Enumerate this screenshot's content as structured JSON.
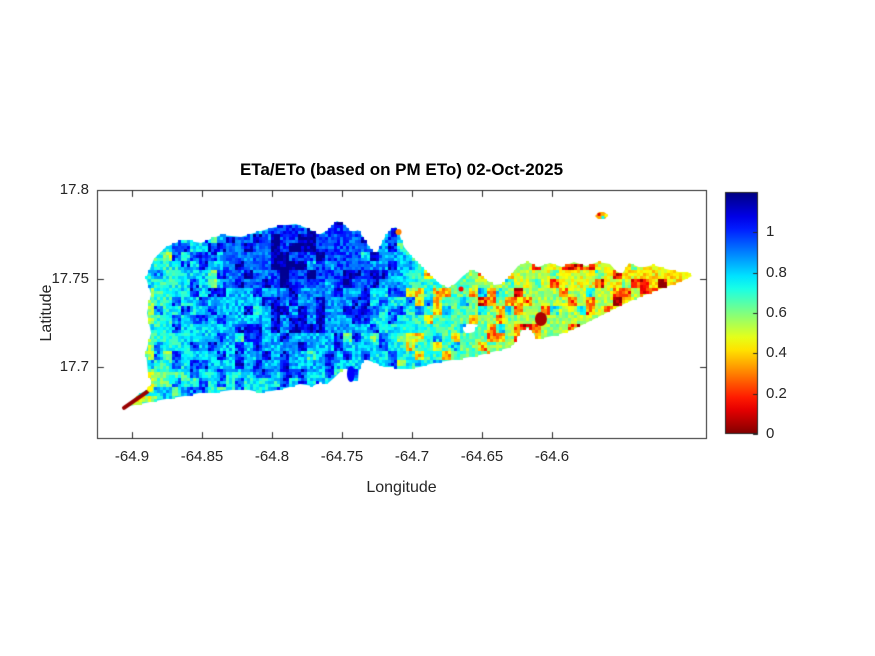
{
  "chart_data": {
    "type": "heatmap",
    "title": "ETa/ETo (based on PM ETo) 02-Oct-2025",
    "xlabel": "Longitude",
    "ylabel": "Latitude",
    "xlim": [
      -64.925,
      -64.49
    ],
    "ylim": [
      17.66,
      17.8
    ],
    "x_ticks": [
      -64.9,
      -64.85,
      -64.8,
      -64.75,
      -64.7,
      -64.65,
      -64.6
    ],
    "x_tick_labels": [
      "-64.9",
      "-64.85",
      "-64.8",
      "-64.75",
      "-64.7",
      "-64.65",
      "-64.6"
    ],
    "y_ticks": [
      17.7,
      17.75,
      17.8
    ],
    "y_tick_labels": [
      "17.7",
      "17.75",
      "17.8"
    ],
    "grid": false,
    "legend": "none",
    "colors": {
      "axis": "#262626",
      "text": "#262626",
      "title": "#000000",
      "background": "#ffffff"
    },
    "colorbar": {
      "position": "right",
      "range": [
        0,
        1.2
      ],
      "ticks": [
        0,
        0.2,
        0.4,
        0.6,
        0.8,
        1
      ],
      "tick_labels": [
        "0",
        "0.2",
        "0.4",
        "0.6",
        "0.8",
        "1"
      ],
      "colormap": "jet-reversed (high=dark blue at top, low=dark red at bottom)"
    },
    "value_field": {
      "description": "ETa/ETo ratio over the island: high (blue, ~0.9-1.15) in the west/northwest, mid (cyan-green, ~0.65-0.85) in the center, low (yellow-orange, ~0.3-0.6) in the east; speckled pixel texture",
      "base_gradient": [
        [
          0,
          0.6
        ],
        [
          0.06,
          0.78
        ],
        [
          0.18,
          0.82
        ],
        [
          0.4,
          0.8
        ],
        [
          0.55,
          0.72
        ],
        [
          0.65,
          0.64
        ],
        [
          0.78,
          0.56
        ],
        [
          0.9,
          0.5
        ],
        [
          1,
          0.46
        ]
      ],
      "base_by_longitude": [
        [
          -64.91,
          0.55
        ],
        [
          -64.885,
          0.68
        ],
        [
          -64.86,
          0.78
        ],
        [
          -64.83,
          0.82
        ],
        [
          -64.79,
          0.84
        ],
        [
          -64.75,
          0.82
        ],
        [
          -64.72,
          0.77
        ],
        [
          -64.7,
          0.72
        ],
        [
          -64.67,
          0.66
        ],
        [
          -64.64,
          0.6
        ],
        [
          -64.61,
          0.57
        ],
        [
          -64.58,
          0.54
        ],
        [
          -64.55,
          0.52
        ],
        [
          -64.52,
          0.49
        ],
        [
          -64.49,
          0.46
        ]
      ],
      "noise": 0.2,
      "seed": 42
    },
    "island_outline": [
      [
        -64.905,
        17.6775
      ],
      [
        -64.895,
        17.6848
      ],
      [
        -64.8893,
        17.6871
      ],
      [
        -64.8857,
        17.691
      ],
      [
        -64.8886,
        17.6967
      ],
      [
        -64.89,
        17.7085
      ],
      [
        -64.8864,
        17.7193
      ],
      [
        -64.8893,
        17.7305
      ],
      [
        -64.8864,
        17.7413
      ],
      [
        -64.89,
        17.7503
      ],
      [
        -64.8843,
        17.761
      ],
      [
        -64.8757,
        17.7678
      ],
      [
        -64.8636,
        17.7718
      ],
      [
        -64.8507,
        17.7701
      ],
      [
        -64.8364,
        17.7746
      ],
      [
        -64.8221,
        17.7735
      ],
      [
        -64.8079,
        17.7768
      ],
      [
        -64.795,
        17.7797
      ],
      [
        -64.7829,
        17.7808
      ],
      [
        -64.7736,
        17.778
      ],
      [
        -64.7664,
        17.7746
      ],
      [
        -64.76,
        17.7774
      ],
      [
        -64.7536,
        17.7825
      ],
      [
        -64.7479,
        17.7802
      ],
      [
        -64.7429,
        17.7757
      ],
      [
        -64.7386,
        17.7774
      ],
      [
        -64.735,
        17.7735
      ],
      [
        -64.7314,
        17.769
      ],
      [
        -64.7279,
        17.765
      ],
      [
        -64.7257,
        17.7639
      ],
      [
        -64.7229,
        17.7678
      ],
      [
        -64.7193,
        17.7735
      ],
      [
        -64.715,
        17.778
      ],
      [
        -64.7114,
        17.7791
      ],
      [
        -64.7086,
        17.774
      ],
      [
        -64.7057,
        17.7678
      ],
      [
        -64.7,
        17.7622
      ],
      [
        -64.6929,
        17.7565
      ],
      [
        -64.6857,
        17.7509
      ],
      [
        -64.68,
        17.7469
      ],
      [
        -64.6743,
        17.7447
      ],
      [
        -64.6693,
        17.7469
      ],
      [
        -64.6636,
        17.7514
      ],
      [
        -64.6586,
        17.7543
      ],
      [
        -64.6529,
        17.7537
      ],
      [
        -64.6471,
        17.7492
      ],
      [
        -64.6414,
        17.7464
      ],
      [
        -64.635,
        17.7469
      ],
      [
        -64.6293,
        17.752
      ],
      [
        -64.6243,
        17.7571
      ],
      [
        -64.6171,
        17.7593
      ],
      [
        -64.61,
        17.7565
      ],
      [
        -64.6014,
        17.7588
      ],
      [
        -64.5929,
        17.7565
      ],
      [
        -64.5843,
        17.7593
      ],
      [
        -64.5757,
        17.7571
      ],
      [
        -64.5671,
        17.7593
      ],
      [
        -64.5586,
        17.7582
      ],
      [
        -64.5543,
        17.7543
      ],
      [
        -64.55,
        17.7526
      ],
      [
        -64.545,
        17.7588
      ],
      [
        -64.5364,
        17.756
      ],
      [
        -64.5279,
        17.7576
      ],
      [
        -64.5186,
        17.7554
      ],
      [
        -64.5093,
        17.7537
      ],
      [
        -64.5029,
        17.7537
      ],
      [
        -64.5,
        17.7514
      ],
      [
        -64.5086,
        17.7481
      ],
      [
        -64.5171,
        17.7458
      ],
      [
        -64.5264,
        17.743
      ],
      [
        -64.5357,
        17.7401
      ],
      [
        -64.5457,
        17.7368
      ],
      [
        -64.5557,
        17.7328
      ],
      [
        -64.5657,
        17.7289
      ],
      [
        -64.5757,
        17.7249
      ],
      [
        -64.5857,
        17.721
      ],
      [
        -64.5943,
        17.7187
      ],
      [
        -64.6029,
        17.717
      ],
      [
        -64.6114,
        17.7159
      ],
      [
        -64.6136,
        17.7198
      ],
      [
        -64.6171,
        17.7221
      ],
      [
        -64.6214,
        17.721
      ],
      [
        -64.6243,
        17.7176
      ],
      [
        -64.6271,
        17.7131
      ],
      [
        -64.6314,
        17.7108
      ],
      [
        -64.6371,
        17.7097
      ],
      [
        -64.6457,
        17.708
      ],
      [
        -64.6543,
        17.7063
      ],
      [
        -64.6629,
        17.7051
      ],
      [
        -64.6714,
        17.704
      ],
      [
        -64.68,
        17.7029
      ],
      [
        -64.6871,
        17.7018
      ],
      [
        -64.6943,
        17.7001
      ],
      [
        -64.7014,
        17.6995
      ],
      [
        -64.7086,
        17.699
      ],
      [
        -64.7143,
        17.7001
      ],
      [
        -64.72,
        17.7001
      ],
      [
        -64.7257,
        17.7023
      ],
      [
        -64.73,
        17.7035
      ],
      [
        -64.7336,
        17.7046
      ],
      [
        -64.7357,
        17.7023
      ],
      [
        -64.7379,
        17.6978
      ],
      [
        -64.7386,
        17.6922
      ],
      [
        -64.7421,
        17.6927
      ],
      [
        -64.7443,
        17.6978
      ],
      [
        -64.7479,
        17.6995
      ],
      [
        -64.7514,
        17.6973
      ],
      [
        -64.7557,
        17.6939
      ],
      [
        -64.7607,
        17.6905
      ],
      [
        -64.7657,
        17.6916
      ],
      [
        -64.7707,
        17.6893
      ],
      [
        -64.78,
        17.6905
      ],
      [
        -64.79,
        17.6882
      ],
      [
        -64.8,
        17.6865
      ],
      [
        -64.81,
        17.6859
      ],
      [
        -64.8193,
        17.6876
      ],
      [
        -64.8293,
        17.6871
      ],
      [
        -64.8393,
        17.6859
      ],
      [
        -64.8493,
        17.6859
      ],
      [
        -64.8586,
        17.6842
      ],
      [
        -64.8671,
        17.6831
      ],
      [
        -64.8757,
        17.682
      ],
      [
        -64.8836,
        17.6809
      ],
      [
        -64.8907,
        17.6797
      ],
      [
        -64.8979,
        17.6786
      ]
    ],
    "island_holes": [
      [
        [
          -64.6643,
          17.7221
        ],
        [
          -64.66,
          17.7249
        ],
        [
          -64.6529,
          17.7238
        ],
        [
          -64.6557,
          17.7199
        ],
        [
          -64.6614,
          17.7187
        ]
      ]
    ],
    "islets": [
      {
        "name": "northeast-islet",
        "outline": [
          [
            -64.5693,
            17.7853
          ],
          [
            -64.5664,
            17.7876
          ],
          [
            -64.5629,
            17.7876
          ],
          [
            -64.56,
            17.7859
          ],
          [
            -64.5621,
            17.7836
          ],
          [
            -64.5671,
            17.7836
          ]
        ],
        "mean_value": 0.35,
        "spots": [
          {
            "at": [
              -64.5664,
              17.7862
            ],
            "value": 0.12
          },
          {
            "at": [
              -64.5636,
              17.7845
            ],
            "value": 0.75
          },
          {
            "at": [
              -64.5614,
              17.7856
            ],
            "value": 0.45
          }
        ]
      }
    ],
    "features": [
      {
        "name": "sandy-point-low-strip",
        "shape": "line",
        "from": [
          -64.9057,
          17.677
        ],
        "to": [
          -64.889,
          17.6862
        ],
        "width": 4,
        "value": 0.03
      },
      {
        "name": "sandy-point-yellow-spot",
        "shape": "dot",
        "at": [
          -64.8871,
          17.6876
        ],
        "r": 3,
        "value": 0.45
      },
      {
        "name": "dark-red-patch",
        "shape": "ellipse",
        "at": [
          -64.6079,
          17.7272
        ],
        "rx": 6,
        "ry": 7,
        "value": 0.05
      },
      {
        "name": "red-spot",
        "shape": "dot",
        "at": [
          -64.665,
          17.7441
        ],
        "r": 2.5,
        "value": 0.15
      },
      {
        "name": "peninsula-orange-tip",
        "shape": "dot",
        "at": [
          -64.7096,
          17.7763
        ],
        "r": 3,
        "value": 0.3
      },
      {
        "name": "south-coast-blue-point",
        "shape": "ellipse",
        "at": [
          -64.7436,
          17.6961
        ],
        "rx": 4,
        "ry": 8,
        "value": 1.05
      }
    ]
  }
}
